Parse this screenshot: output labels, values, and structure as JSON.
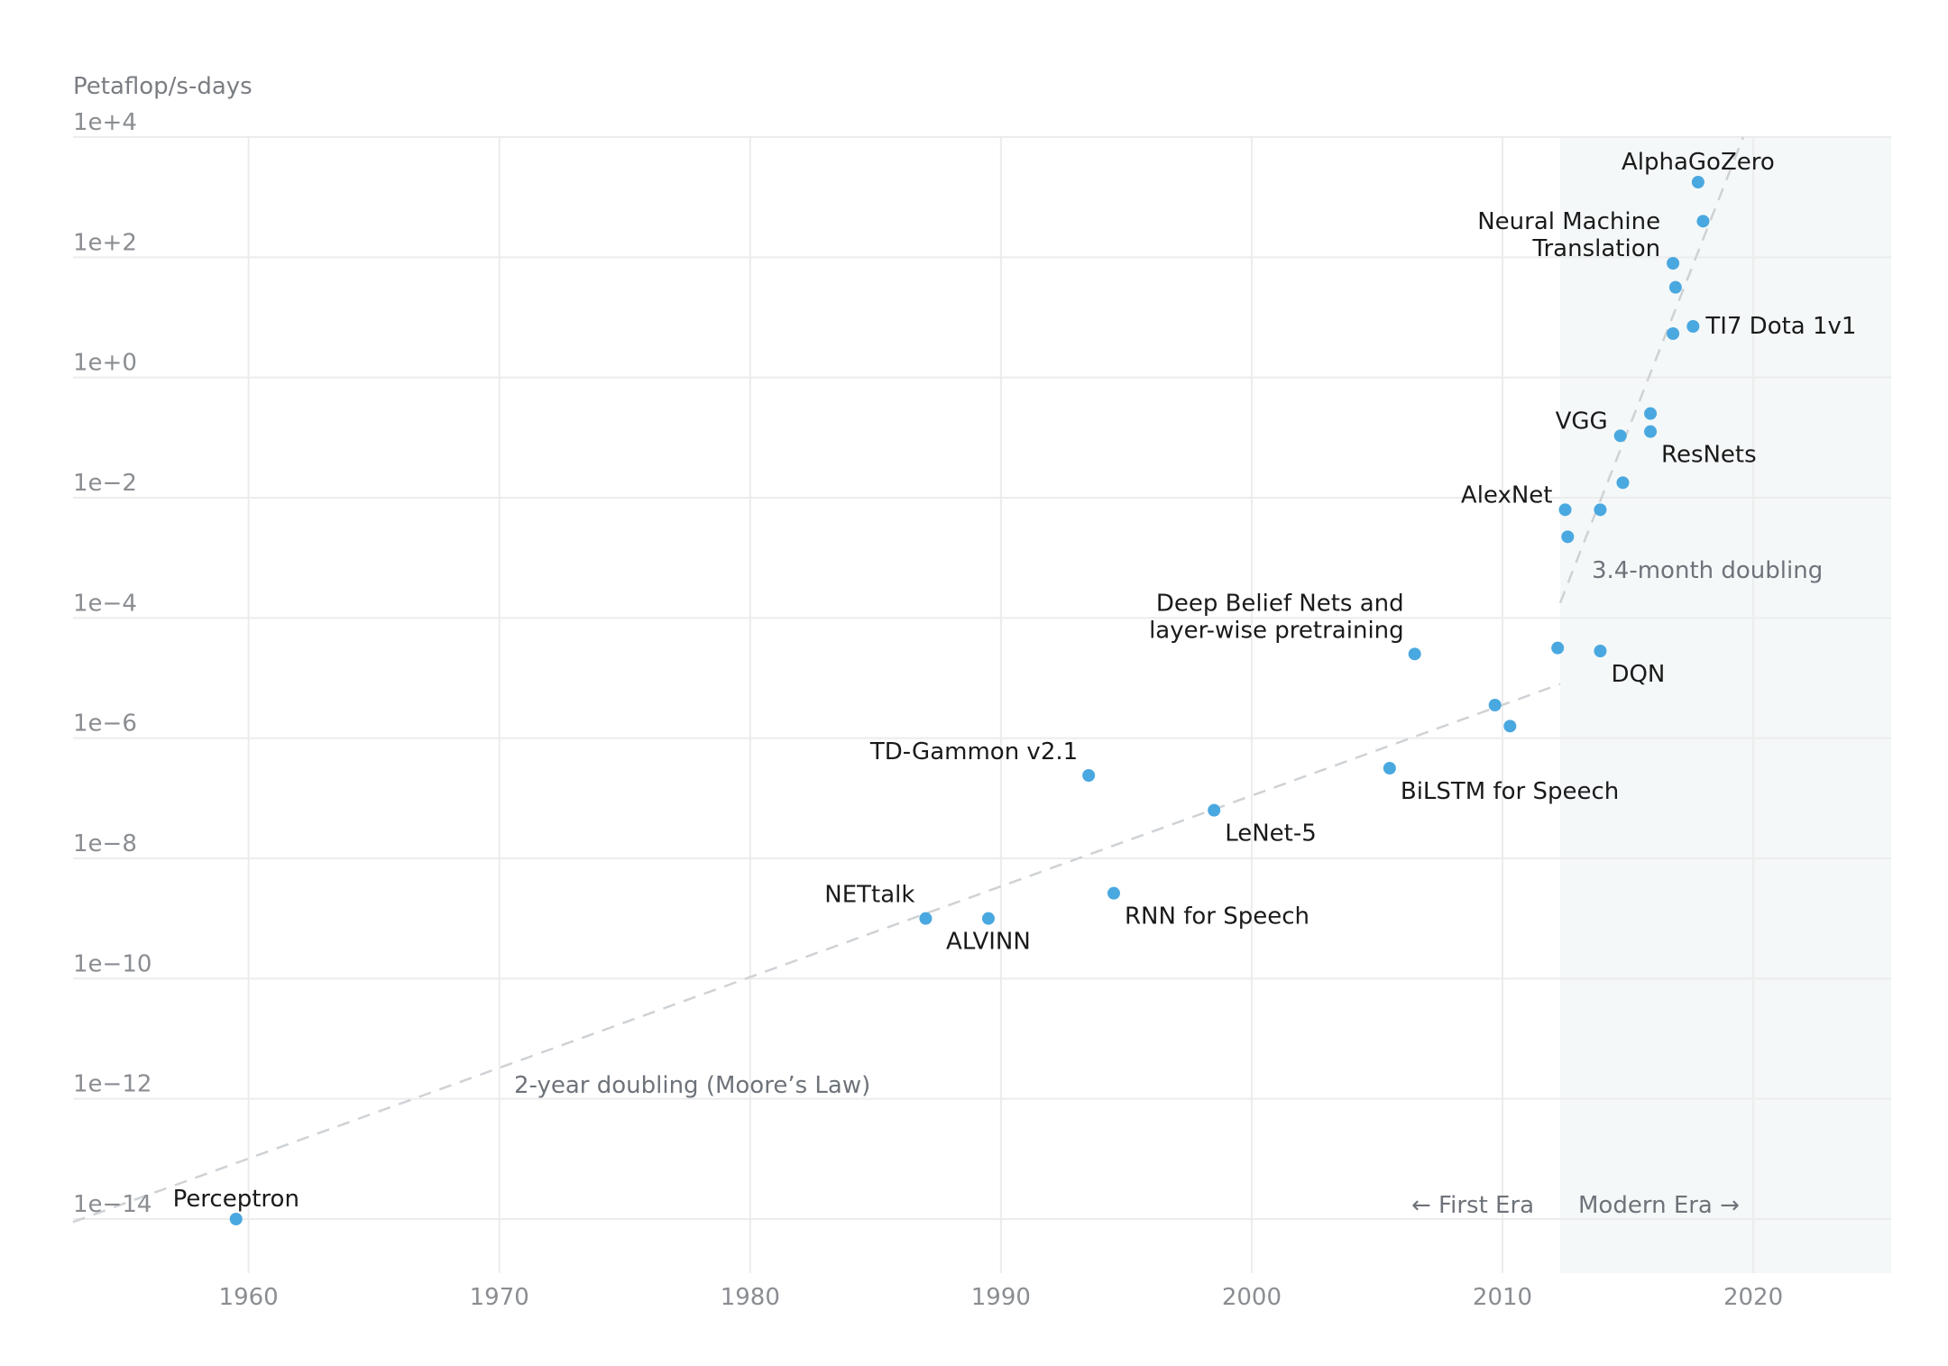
{
  "chart_data": {
    "type": "scatter",
    "ylabel": "Petaflop/s-days",
    "y_scale": "log10",
    "ylim_log10": [
      -15,
      4
    ],
    "xlim": [
      1953,
      2025.5
    ],
    "x_ticks": [
      1960,
      1970,
      1980,
      1990,
      2000,
      2010,
      2020
    ],
    "x_tick_labels": [
      "1960",
      "1970",
      "1980",
      "1990",
      "2000",
      "2010",
      "2020"
    ],
    "y_ticks_log10": [
      4,
      2,
      0,
      -2,
      -4,
      -6,
      -8,
      -10,
      -12,
      -14
    ],
    "y_tick_labels": [
      "1e+4",
      "1e+2",
      "1e+0",
      "1e−2",
      "1e−4",
      "1e−6",
      "1e−8",
      "1e−10",
      "1e−12",
      "1e−14"
    ],
    "point_color": "#4aa8e0",
    "modern_era_shade": "#f4f8f8",
    "modern_era_start": 2012.3,
    "points": [
      {
        "label": "Perceptron",
        "year": 1959.5,
        "log10_value": -14.0,
        "label_pos": "above"
      },
      {
        "label": "NETtalk",
        "year": 1987.0,
        "log10_value": -9.0,
        "label_pos": "above-left"
      },
      {
        "label": "ALVINN",
        "year": 1989.5,
        "log10_value": -9.0,
        "label_pos": "below"
      },
      {
        "label": "TD-Gammon v2.1",
        "year": 1993.5,
        "log10_value": -6.62,
        "label_pos": "above-left"
      },
      {
        "label": "RNN for Speech",
        "year": 1994.5,
        "log10_value": -8.58,
        "label_pos": "below-right"
      },
      {
        "label": "LeNet-5",
        "year": 1998.5,
        "log10_value": -7.2,
        "label_pos": "below-right"
      },
      {
        "label": "BiLSTM for Speech",
        "year": 2005.5,
        "log10_value": -6.5,
        "label_pos": "below-right"
      },
      {
        "label": "Deep Belief Nets and|layer-wise pretraining",
        "year": 2006.5,
        "log10_value": -4.6,
        "label_pos": "above-left"
      },
      {
        "label": "",
        "year": 2009.7,
        "log10_value": -5.45
      },
      {
        "label": "",
        "year": 2010.3,
        "log10_value": -5.8
      },
      {
        "label": "",
        "year": 2012.2,
        "log10_value": -4.5
      },
      {
        "label": "DQN",
        "year": 2013.9,
        "log10_value": -4.55,
        "label_pos": "below-right"
      },
      {
        "label": "AlexNet",
        "year": 2012.5,
        "log10_value": -2.2,
        "label_pos": "left"
      },
      {
        "label": "",
        "year": 2012.6,
        "log10_value": -2.65
      },
      {
        "label": "",
        "year": 2013.9,
        "log10_value": -2.2
      },
      {
        "label": "",
        "year": 2014.8,
        "log10_value": -1.75
      },
      {
        "label": "VGG",
        "year": 2014.7,
        "log10_value": -0.97,
        "label_pos": "left"
      },
      {
        "label": "ResNets",
        "year": 2015.9,
        "log10_value": -0.9,
        "label_pos": "below-right"
      },
      {
        "label": "",
        "year": 2015.9,
        "log10_value": -0.6
      },
      {
        "label": "",
        "year": 2016.8,
        "log10_value": 0.73
      },
      {
        "label": "TI7 Dota 1v1",
        "year": 2017.6,
        "log10_value": 0.85,
        "label_pos": "right"
      },
      {
        "label": "",
        "year": 2016.9,
        "log10_value": 1.5
      },
      {
        "label": "Neural Machine|Translation",
        "year": 2016.8,
        "log10_value": 1.9,
        "label_pos": "left"
      },
      {
        "label": "",
        "year": 2018.0,
        "log10_value": 2.6
      },
      {
        "label": "AlphaGoZero",
        "year": 2017.8,
        "log10_value": 3.25,
        "label_pos": "above"
      }
    ],
    "trend_lines": [
      {
        "name": "2-year doubling (Moore’s Law)",
        "from": [
          1953,
          -14.05
        ],
        "to": [
          2012.3,
          -5.1
        ]
      },
      {
        "name": "3.4-month doubling",
        "from": [
          2012.3,
          -3.75
        ],
        "to": [
          2019.6,
          4.0
        ]
      }
    ],
    "annotations": {
      "moores_law": "2-year doubling (Moore’s Law)",
      "modern_doubling": "3.4-month doubling",
      "first_era": "← First Era",
      "modern_era": "Modern Era →"
    }
  }
}
